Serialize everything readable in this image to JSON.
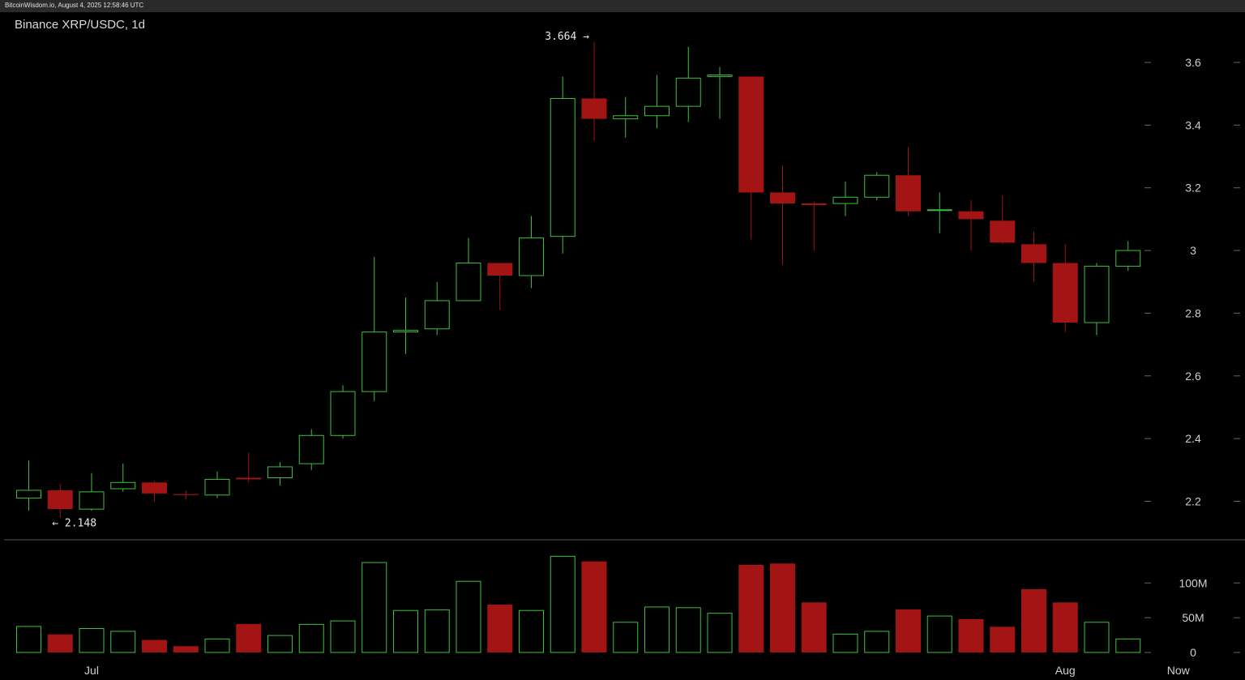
{
  "header": {
    "watermark": "BitcoinWisdom.io, August 4, 2025 12:58:46 UTC"
  },
  "colors": {
    "up": "#3fbf3f",
    "down": "#a31414",
    "background": "#000000",
    "axis_text": "#cfcfcf",
    "separator": "#555555"
  },
  "chart_data": {
    "type": "candlestick",
    "title": "Binance XRP/USDC, 1d",
    "price_axis": {
      "ylim": [
        2.1,
        3.75
      ],
      "ticks": [
        {
          "value": 2.2,
          "label": "2.2"
        },
        {
          "value": 2.4,
          "label": "2.4"
        },
        {
          "value": 2.6,
          "label": "2.6"
        },
        {
          "value": 2.8,
          "label": "2.8"
        },
        {
          "value": 3.0,
          "label": "3"
        },
        {
          "value": 3.2,
          "label": "3.2"
        },
        {
          "value": 3.4,
          "label": "3.4"
        },
        {
          "value": 3.6,
          "label": "3.6"
        }
      ]
    },
    "volume_axis": {
      "ylim": [
        0,
        140
      ],
      "unit": "M",
      "ticks": [
        {
          "value": 0,
          "label": "0"
        },
        {
          "value": 50,
          "label": "50M"
        },
        {
          "value": 100,
          "label": "100M"
        }
      ]
    },
    "x_labels": [
      {
        "index": 2,
        "label": "Jul"
      },
      {
        "index": 33,
        "label": "Aug"
      },
      {
        "index": 36.6,
        "label": "Now"
      }
    ],
    "annotations": [
      {
        "index": 18,
        "value": 3.664,
        "label": "3.664 →",
        "anchor": "end"
      },
      {
        "index": 1,
        "value": 2.148,
        "label": "← 2.148",
        "anchor": "start"
      }
    ],
    "candles": [
      {
        "o": 2.21,
        "h": 2.33,
        "l": 2.17,
        "c": 2.235,
        "v": 38
      },
      {
        "o": 2.235,
        "h": 2.255,
        "l": 2.148,
        "c": 2.175,
        "v": 26
      },
      {
        "o": 2.175,
        "h": 2.29,
        "l": 2.17,
        "c": 2.23,
        "v": 35
      },
      {
        "o": 2.24,
        "h": 2.32,
        "l": 2.23,
        "c": 2.26,
        "v": 31
      },
      {
        "o": 2.26,
        "h": 2.265,
        "l": 2.2,
        "c": 2.225,
        "v": 18
      },
      {
        "o": 2.223,
        "h": 2.235,
        "l": 2.205,
        "c": 2.22,
        "v": 9
      },
      {
        "o": 2.22,
        "h": 2.295,
        "l": 2.21,
        "c": 2.27,
        "v": 20
      },
      {
        "o": 2.275,
        "h": 2.355,
        "l": 2.26,
        "c": 2.27,
        "v": 41
      },
      {
        "o": 2.275,
        "h": 2.325,
        "l": 2.25,
        "c": 2.31,
        "v": 25
      },
      {
        "o": 2.32,
        "h": 2.43,
        "l": 2.3,
        "c": 2.41,
        "v": 41
      },
      {
        "o": 2.41,
        "h": 2.57,
        "l": 2.4,
        "c": 2.55,
        "v": 46
      },
      {
        "o": 2.55,
        "h": 2.98,
        "l": 2.52,
        "c": 2.74,
        "v": 130
      },
      {
        "o": 2.74,
        "h": 2.85,
        "l": 2.67,
        "c": 2.745,
        "v": 61
      },
      {
        "o": 2.75,
        "h": 2.9,
        "l": 2.73,
        "c": 2.84,
        "v": 62
      },
      {
        "o": 2.84,
        "h": 3.04,
        "l": 2.84,
        "c": 2.96,
        "v": 103
      },
      {
        "o": 2.96,
        "h": 2.96,
        "l": 2.81,
        "c": 2.92,
        "v": 69
      },
      {
        "o": 2.92,
        "h": 3.11,
        "l": 2.88,
        "c": 3.04,
        "v": 61
      },
      {
        "o": 3.045,
        "h": 3.555,
        "l": 2.99,
        "c": 3.485,
        "v": 139
      },
      {
        "o": 3.485,
        "h": 3.664,
        "l": 3.35,
        "c": 3.42,
        "v": 131
      },
      {
        "o": 3.42,
        "h": 3.49,
        "l": 3.36,
        "c": 3.43,
        "v": 44
      },
      {
        "o": 3.43,
        "h": 3.56,
        "l": 3.39,
        "c": 3.46,
        "v": 66
      },
      {
        "o": 3.46,
        "h": 3.65,
        "l": 3.41,
        "c": 3.55,
        "v": 65
      },
      {
        "o": 3.555,
        "h": 3.585,
        "l": 3.42,
        "c": 3.56,
        "v": 57
      },
      {
        "o": 3.555,
        "h": 3.555,
        "l": 3.035,
        "c": 3.185,
        "v": 126
      },
      {
        "o": 3.185,
        "h": 3.27,
        "l": 2.955,
        "c": 3.15,
        "v": 128
      },
      {
        "o": 3.15,
        "h": 3.155,
        "l": 3.0,
        "c": 3.145,
        "v": 72
      },
      {
        "o": 3.15,
        "h": 3.22,
        "l": 3.11,
        "c": 3.17,
        "v": 27
      },
      {
        "o": 3.17,
        "h": 3.25,
        "l": 3.16,
        "c": 3.24,
        "v": 31
      },
      {
        "o": 3.24,
        "h": 3.33,
        "l": 3.11,
        "c": 3.125,
        "v": 62
      },
      {
        "o": 3.13,
        "h": 3.185,
        "l": 3.055,
        "c": 3.13,
        "v": 53
      },
      {
        "o": 3.125,
        "h": 3.16,
        "l": 3.0,
        "c": 3.1,
        "v": 48
      },
      {
        "o": 3.095,
        "h": 3.175,
        "l": 3.02,
        "c": 3.025,
        "v": 37
      },
      {
        "o": 3.02,
        "h": 3.06,
        "l": 2.9,
        "c": 2.96,
        "v": 91
      },
      {
        "o": 2.96,
        "h": 3.02,
        "l": 2.74,
        "c": 2.77,
        "v": 72
      },
      {
        "o": 2.77,
        "h": 2.96,
        "l": 2.73,
        "c": 2.95,
        "v": 44
      },
      {
        "o": 2.95,
        "h": 3.03,
        "l": 2.935,
        "c": 3.0,
        "v": 20
      }
    ]
  }
}
